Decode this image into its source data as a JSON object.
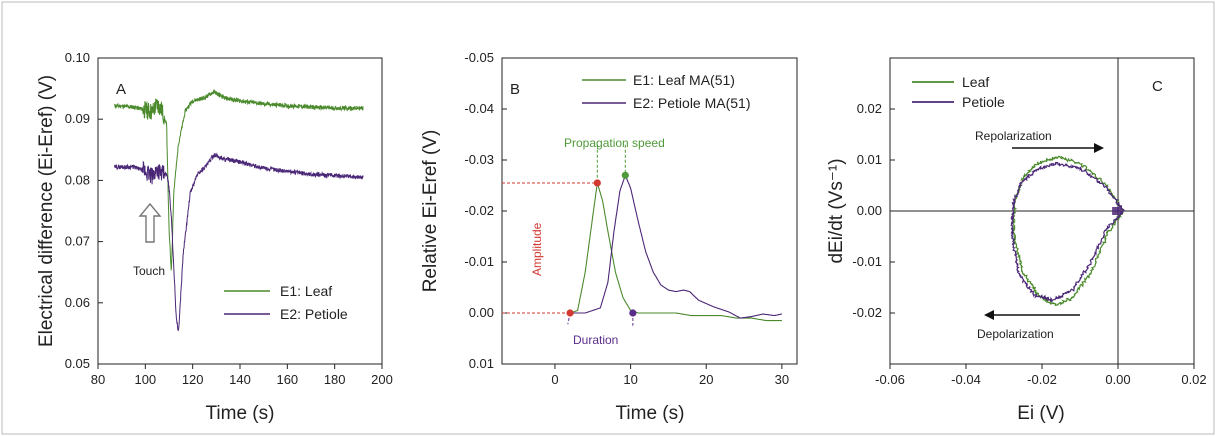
{
  "colors": {
    "leaf": "#4a8a2c",
    "petiole": "#4b2777",
    "red": "#d23a32",
    "green": "#4f9a3a",
    "purple": "#5a2d8a",
    "axis": "#222222"
  },
  "chart_data": [
    {
      "type": "line",
      "panel_label": "A",
      "xlabel": "Time (s)",
      "ylabel": "Electrical difference (Ei-Eref) (V)",
      "xlim": [
        80,
        200
      ],
      "ylim": [
        0.05,
        0.1
      ],
      "xticks": [
        "80",
        "100",
        "120",
        "140",
        "160",
        "180",
        "200"
      ],
      "yticks": [
        "0.05",
        "0.06",
        "0.07",
        "0.08",
        "0.09",
        "0.10"
      ],
      "legend_position": "bottom-right",
      "annotation": "Touch",
      "series": [
        {
          "name": "E1: Leaf",
          "x": [
            87,
            95,
            100,
            103,
            105,
            107,
            109,
            110,
            111,
            112,
            114,
            117,
            120,
            125,
            129,
            133,
            140,
            150,
            160,
            170,
            180,
            192
          ],
          "y": [
            0.0922,
            0.092,
            0.0915,
            0.0912,
            0.0925,
            0.0915,
            0.089,
            0.072,
            0.065,
            0.078,
            0.086,
            0.0915,
            0.093,
            0.0935,
            0.0945,
            0.0935,
            0.093,
            0.0925,
            0.0922,
            0.092,
            0.0918,
            0.0918
          ]
        },
        {
          "name": "E2: Petiole",
          "x": [
            87,
            95,
            100,
            103,
            105,
            107,
            109,
            110,
            111,
            112,
            113,
            114,
            116,
            119,
            122,
            126,
            129,
            133,
            140,
            150,
            160,
            170,
            180,
            192
          ],
          "y": [
            0.0822,
            0.0822,
            0.0815,
            0.0805,
            0.082,
            0.081,
            0.081,
            0.079,
            0.074,
            0.066,
            0.058,
            0.055,
            0.068,
            0.078,
            0.081,
            0.0825,
            0.0842,
            0.0835,
            0.083,
            0.082,
            0.0815,
            0.081,
            0.0808,
            0.0805
          ]
        }
      ]
    },
    {
      "type": "line",
      "panel_label": "B",
      "xlabel": "Time (s)",
      "ylabel": "Relative Ei-Eref (V)",
      "xlim": [
        -7,
        32
      ],
      "ylim": [
        0.01,
        -0.05
      ],
      "y_axis_inverted": true,
      "xticks": [
        "0",
        "10",
        "20",
        "30"
      ],
      "yticks": [
        "-0.05",
        "-0.04",
        "-0.03",
        "-0.02",
        "-0.01",
        "0.00",
        "0.01"
      ],
      "legend_position": "top-right",
      "annotations": [
        "Propagation speed",
        "Amplitude",
        "Duration"
      ],
      "series": [
        {
          "name": "E1: Leaf MA(51)",
          "x": [
            2,
            3,
            4,
            5,
            5.6,
            6.3,
            7,
            8,
            9,
            10,
            11,
            12,
            14,
            16,
            18,
            20,
            22,
            24,
            26,
            28,
            30
          ],
          "y": [
            0.0,
            -0.0005,
            -0.008,
            -0.019,
            -0.0255,
            -0.022,
            -0.016,
            -0.008,
            -0.003,
            -0.0005,
            0.0,
            0.0,
            0.0,
            0.0,
            0.0005,
            0.0005,
            0.0005,
            0.001,
            0.001,
            0.0015,
            0.0015
          ]
        },
        {
          "name": "E2: Petiole MA(51)",
          "x": [
            2,
            4,
            6,
            7,
            7.8,
            8.6,
            9.3,
            10,
            11,
            12,
            13,
            14,
            15,
            16,
            17,
            17.8,
            19,
            21,
            23,
            24.5,
            26,
            27.5,
            29,
            30
          ],
          "y": [
            0.0,
            0.0,
            -0.001,
            -0.006,
            -0.016,
            -0.024,
            -0.027,
            -0.0245,
            -0.018,
            -0.012,
            -0.008,
            -0.0055,
            -0.0045,
            -0.0042,
            -0.0045,
            -0.0042,
            -0.0025,
            -0.0012,
            -0.0002,
            0.001,
            0.0007,
            0.0002,
            0.0005,
            0.0002
          ]
        }
      ]
    },
    {
      "type": "line",
      "panel_label": "C",
      "xlabel": "Ei (V)",
      "ylabel": "dEi/dt (Vs⁻¹)",
      "xlim": [
        -0.06,
        0.02
      ],
      "ylim": [
        -0.03,
        0.03
      ],
      "xticks": [
        "-0.06",
        "-0.04",
        "-0.02",
        "0.00",
        "0.02"
      ],
      "yticks": [
        "-0.02",
        "-0.01",
        "0.00",
        "0.01",
        "0.02"
      ],
      "legend_position": "top-left",
      "annotations": [
        "Repolarization",
        "Depolarization"
      ],
      "series": [
        {
          "name": "Leaf",
          "x": [
            0.0015,
            -0.003,
            -0.01,
            -0.016,
            -0.021,
            -0.025,
            -0.027,
            -0.0275,
            -0.027,
            -0.025,
            -0.021,
            -0.0165,
            -0.012,
            -0.007,
            -0.0025,
            0.0015
          ],
          "y": [
            0.0,
            0.005,
            0.0095,
            0.0105,
            0.0095,
            0.0065,
            0.002,
            -0.003,
            -0.0065,
            -0.012,
            -0.0165,
            -0.0185,
            -0.017,
            -0.012,
            -0.004,
            0.0
          ]
        },
        {
          "name": "Petiole",
          "x": [
            0.0015,
            -0.003,
            -0.01,
            -0.016,
            -0.021,
            -0.0255,
            -0.0275,
            -0.028,
            -0.0275,
            -0.026,
            -0.022,
            -0.017,
            -0.012,
            -0.0075,
            -0.003,
            0.0015
          ],
          "y": [
            0.0,
            0.0045,
            0.0085,
            0.0093,
            0.0083,
            0.0055,
            0.0015,
            -0.003,
            -0.007,
            -0.0125,
            -0.0165,
            -0.0175,
            -0.0155,
            -0.0105,
            -0.0035,
            0.0
          ]
        }
      ]
    }
  ]
}
